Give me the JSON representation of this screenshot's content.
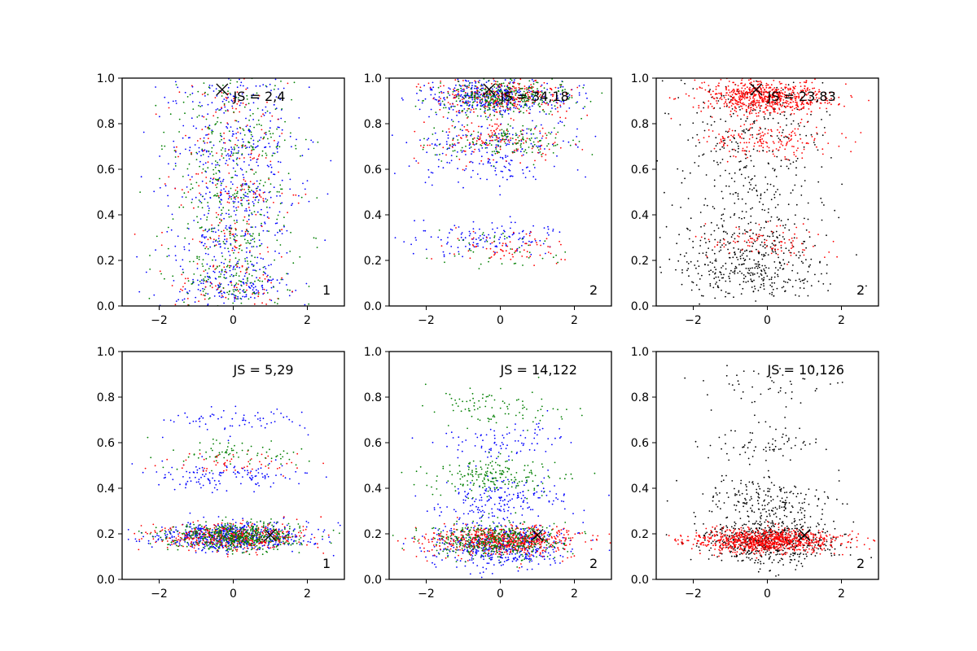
{
  "chart_data": [
    {
      "type": "scatter",
      "panel_label": "1",
      "annotation": "JS = 2,4",
      "marker": {
        "x": -0.3,
        "y": 0.95
      },
      "xlim": [
        -3,
        3
      ],
      "ylim": [
        0,
        1
      ],
      "xticks": [
        -2,
        0,
        2
      ],
      "yticks": [
        0.0,
        0.2,
        0.4,
        0.6,
        0.8,
        1.0
      ],
      "xlabel": "",
      "ylabel": "",
      "grid": false,
      "series": [
        {
          "name": "blue",
          "color": "#0000ff",
          "count": 700,
          "x_mean": 0,
          "x_sd": 0.85,
          "clusters": [
            {
              "y": 0.1,
              "w": 1.0
            },
            {
              "y": 0.3,
              "w": 0.7
            },
            {
              "y": 0.5,
              "w": 0.7
            },
            {
              "y": 0.7,
              "w": 0.8
            },
            {
              "y": 0.9,
              "w": 0.5
            }
          ],
          "y_sd": 0.06
        },
        {
          "name": "red",
          "color": "#ff0000",
          "count": 280,
          "x_mean": 0,
          "x_sd": 0.85,
          "clusters": [
            {
              "y": 0.1,
              "w": 1.0
            },
            {
              "y": 0.3,
              "w": 0.7
            },
            {
              "y": 0.5,
              "w": 0.7
            },
            {
              "y": 0.7,
              "w": 0.8
            },
            {
              "y": 0.9,
              "w": 0.5
            }
          ],
          "y_sd": 0.06
        },
        {
          "name": "green",
          "color": "#007f00",
          "count": 520,
          "x_mean": 0,
          "x_sd": 0.85,
          "clusters": [
            {
              "y": 0.1,
              "w": 1.0
            },
            {
              "y": 0.3,
              "w": 0.7
            },
            {
              "y": 0.5,
              "w": 0.7
            },
            {
              "y": 0.7,
              "w": 0.8
            },
            {
              "y": 0.9,
              "w": 0.5
            }
          ],
          "y_sd": 0.06
        }
      ]
    },
    {
      "type": "scatter",
      "panel_label": "2",
      "annotation": "JS = 34,18",
      "marker": {
        "x": -0.3,
        "y": 0.95
      },
      "xlim": [
        -3,
        3
      ],
      "ylim": [
        0,
        1
      ],
      "xticks": [
        -2,
        0,
        2
      ],
      "yticks": [
        0.0,
        0.2,
        0.4,
        0.6,
        0.8,
        1.0
      ],
      "xlabel": "",
      "ylabel": "",
      "grid": false,
      "series": [
        {
          "name": "blue",
          "color": "#0000ff",
          "count": 750,
          "x_mean": -0.3,
          "x_sd": 1.0,
          "clusters": [
            {
              "y": 0.92,
              "w": 1.0
            },
            {
              "y": 0.72,
              "w": 0.35
            },
            {
              "y": 0.3,
              "w": 0.3
            },
            {
              "y": 0.6,
              "w": 0.15
            }
          ],
          "y_sd": 0.04
        },
        {
          "name": "red",
          "color": "#ff0000",
          "count": 500,
          "x_mean": 0,
          "x_sd": 0.9,
          "clusters": [
            {
              "y": 0.92,
              "w": 1.0
            },
            {
              "y": 0.72,
              "w": 0.5
            },
            {
              "y": 0.25,
              "w": 0.3
            }
          ],
          "y_sd": 0.04
        },
        {
          "name": "green",
          "color": "#007f00",
          "count": 500,
          "x_mean": 0,
          "x_sd": 0.9,
          "clusters": [
            {
              "y": 0.92,
              "w": 1.0
            },
            {
              "y": 0.72,
              "w": 0.5
            },
            {
              "y": 0.25,
              "w": 0.2
            }
          ],
          "y_sd": 0.04
        }
      ]
    },
    {
      "type": "scatter",
      "panel_label": "2",
      "annotation": "JS = 23,83",
      "marker": {
        "x": -0.3,
        "y": 0.95
      },
      "xlim": [
        -3,
        3
      ],
      "ylim": [
        0,
        1
      ],
      "xticks": [
        -2,
        0,
        2
      ],
      "yticks": [
        0.0,
        0.2,
        0.4,
        0.6,
        0.8,
        1.0
      ],
      "xlabel": "",
      "ylabel": "",
      "grid": false,
      "series": [
        {
          "name": "black",
          "color": "#000000",
          "count": 800,
          "x_mean": -0.4,
          "x_sd": 1.0,
          "clusters": [
            {
              "y": 0.15,
              "w": 0.8
            },
            {
              "y": 0.3,
              "w": 0.4
            },
            {
              "y": 0.5,
              "w": 0.3
            },
            {
              "y": 0.7,
              "w": 0.3
            },
            {
              "y": 0.88,
              "w": 0.3
            }
          ],
          "y_sd": 0.07
        },
        {
          "name": "red",
          "color": "#ff0000",
          "count": 950,
          "x_mean": 0,
          "x_sd": 0.9,
          "clusters": [
            {
              "y": 0.92,
              "w": 1.0
            },
            {
              "y": 0.72,
              "w": 0.25
            },
            {
              "y": 0.28,
              "w": 0.15
            }
          ],
          "y_sd": 0.035
        }
      ]
    },
    {
      "type": "scatter",
      "panel_label": "1",
      "annotation": "JS = 5,29",
      "marker": {
        "x": 1.0,
        "y": 0.195
      },
      "xlim": [
        -3,
        3
      ],
      "ylim": [
        0,
        1
      ],
      "xticks": [
        -2,
        0,
        2
      ],
      "yticks": [
        0.0,
        0.2,
        0.4,
        0.6,
        0.8,
        1.0
      ],
      "xlabel": "",
      "ylabel": "",
      "grid": false,
      "series": [
        {
          "name": "blue",
          "color": "#0000ff",
          "count": 800,
          "x_mean": 0,
          "x_sd": 1.0,
          "clusters": [
            {
              "y": 0.19,
              "w": 1.0
            },
            {
              "y": 0.45,
              "w": 0.2
            },
            {
              "y": 0.7,
              "w": 0.1
            }
          ],
          "y_sd": 0.03
        },
        {
          "name": "red",
          "color": "#ff0000",
          "count": 500,
          "x_mean": 0,
          "x_sd": 1.0,
          "clusters": [
            {
              "y": 0.19,
              "w": 1.0
            },
            {
              "y": 0.5,
              "w": 0.15
            }
          ],
          "y_sd": 0.03
        },
        {
          "name": "green",
          "color": "#007f00",
          "count": 600,
          "x_mean": 0,
          "x_sd": 0.9,
          "clusters": [
            {
              "y": 0.19,
              "w": 1.0
            },
            {
              "y": 0.55,
              "w": 0.15
            }
          ],
          "y_sd": 0.03
        }
      ]
    },
    {
      "type": "scatter",
      "panel_label": "2",
      "annotation": "JS = 14,122",
      "marker": {
        "x": 1.0,
        "y": 0.195
      },
      "xlim": [
        -3,
        3
      ],
      "ylim": [
        0,
        1
      ],
      "xticks": [
        -2,
        0,
        2
      ],
      "yticks": [
        0.0,
        0.2,
        0.4,
        0.6,
        0.8,
        1.0
      ],
      "xlabel": "",
      "ylabel": "",
      "grid": false,
      "series": [
        {
          "name": "blue",
          "color": "#0000ff",
          "count": 800,
          "x_mean": 0,
          "x_sd": 0.9,
          "clusters": [
            {
              "y": 0.15,
              "w": 1.0
            },
            {
              "y": 0.35,
              "w": 0.4
            },
            {
              "y": 0.6,
              "w": 0.15
            }
          ],
          "y_sd": 0.05
        },
        {
          "name": "red",
          "color": "#ff0000",
          "count": 650,
          "x_mean": 0.1,
          "x_sd": 1.0,
          "clusters": [
            {
              "y": 0.17,
              "w": 1.0
            }
          ],
          "y_sd": 0.03
        },
        {
          "name": "green",
          "color": "#007f00",
          "count": 700,
          "x_mean": -0.2,
          "x_sd": 0.9,
          "clusters": [
            {
              "y": 0.17,
              "w": 1.0
            },
            {
              "y": 0.45,
              "w": 0.35
            },
            {
              "y": 0.75,
              "w": 0.2
            }
          ],
          "y_sd": 0.04
        }
      ]
    },
    {
      "type": "scatter",
      "panel_label": "2",
      "annotation": "JS = 10,126",
      "marker": {
        "x": 1.0,
        "y": 0.195
      },
      "xlim": [
        -3,
        3
      ],
      "ylim": [
        0,
        1
      ],
      "xticks": [
        -2,
        0,
        2
      ],
      "yticks": [
        0.0,
        0.2,
        0.4,
        0.6,
        0.8,
        1.0
      ],
      "xlabel": "",
      "ylabel": "",
      "grid": false,
      "series": [
        {
          "name": "black",
          "color": "#000000",
          "count": 900,
          "x_mean": 0,
          "x_sd": 0.9,
          "clusters": [
            {
              "y": 0.17,
              "w": 1.0
            },
            {
              "y": 0.35,
              "w": 0.35
            },
            {
              "y": 0.6,
              "w": 0.15
            },
            {
              "y": 0.85,
              "w": 0.08
            }
          ],
          "y_sd": 0.05
        },
        {
          "name": "red",
          "color": "#ff0000",
          "count": 900,
          "x_mean": 0,
          "x_sd": 1.0,
          "clusters": [
            {
              "y": 0.17,
              "w": 1.0
            }
          ],
          "y_sd": 0.025
        }
      ]
    }
  ]
}
